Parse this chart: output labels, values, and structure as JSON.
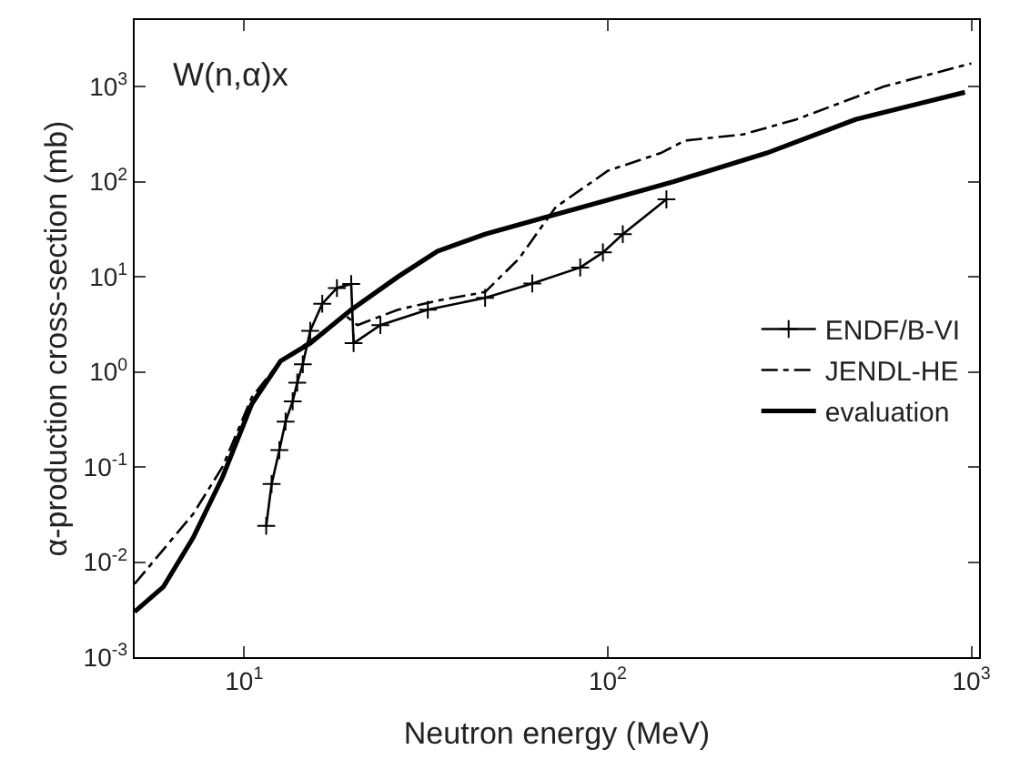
{
  "chart_data": {
    "type": "line",
    "xlabel": "Neutron energy (MeV)",
    "ylabel": "α-production cross-section (mb)",
    "annotations": [
      "W(n,α)x"
    ],
    "log": "xy",
    "legend": "right",
    "xlim": [
      5,
      1050
    ],
    "ylim": [
      0.001,
      5000
    ],
    "xticks": [
      {
        "value": 10,
        "label": "10$^{1}$"
      },
      {
        "value": 100,
        "label": "10$^{2}$"
      },
      {
        "value": 1000,
        "label": "10$^{3}$"
      }
    ],
    "yticks": [
      {
        "value": 0.001,
        "label": "10$^{-3}$"
      },
      {
        "value": 0.01,
        "label": "10$^{-2}$"
      },
      {
        "value": 0.1,
        "label": "10$^{-1}$"
      },
      {
        "value": 1,
        "label": "10$^{0}$"
      },
      {
        "value": 10,
        "label": "10$^{1}$"
      },
      {
        "value": 100,
        "label": "10$^{2}$"
      },
      {
        "value": 1000,
        "label": "10$^{3}$"
      }
    ],
    "series": [
      {
        "name": "ENDF/B-VI",
        "color": "#000000",
        "marker": "cross",
        "line_style": "solid",
        "x": [
          11.5,
          11.9,
          12.5,
          13.0,
          13.6,
          14.0,
          14.5,
          15.2,
          16.4,
          18.0,
          19.7,
          20,
          23.7,
          32,
          46,
          62,
          84,
          97,
          110,
          145
        ],
        "values": [
          0.024,
          0.066,
          0.15,
          0.3,
          0.49,
          0.77,
          1.2,
          2.7,
          5.2,
          7.6,
          8.4,
          2.0,
          3.1,
          4.5,
          6,
          8.5,
          12.5,
          18,
          28,
          65
        ]
      },
      {
        "name": "JENDL-HE",
        "color": "#000000",
        "marker": "none",
        "line_style": "dashdot",
        "x": [
          5,
          7.24,
          8.72,
          10.5,
          12.6,
          15.2,
          19,
          20.5,
          26.5,
          34,
          46,
          57,
          67,
          72,
          94,
          100,
          140,
          163,
          235,
          330,
          575,
          1000
        ],
        "values": [
          0.0059,
          0.032,
          0.1,
          0.54,
          1.3,
          2.1,
          3.9,
          3.1,
          4.5,
          5.6,
          6.9,
          15.5,
          37,
          54,
          110,
          130,
          200,
          270,
          313,
          450,
          1000,
          1750
        ]
      },
      {
        "name": "evaluation",
        "color": "#000000",
        "marker": "none",
        "line_style": "solid",
        "x": [
          5,
          6.0,
          7.24,
          8.72,
          10.5,
          12.6,
          15.2,
          19.7,
          26.5,
          34,
          46,
          67,
          97,
          152,
          274,
          480,
          960
        ],
        "values": [
          0.003,
          0.0055,
          0.018,
          0.078,
          0.46,
          1.3,
          2.0,
          4.5,
          10,
          18.5,
          28,
          42,
          62,
          100,
          200,
          450,
          870
        ]
      }
    ]
  }
}
